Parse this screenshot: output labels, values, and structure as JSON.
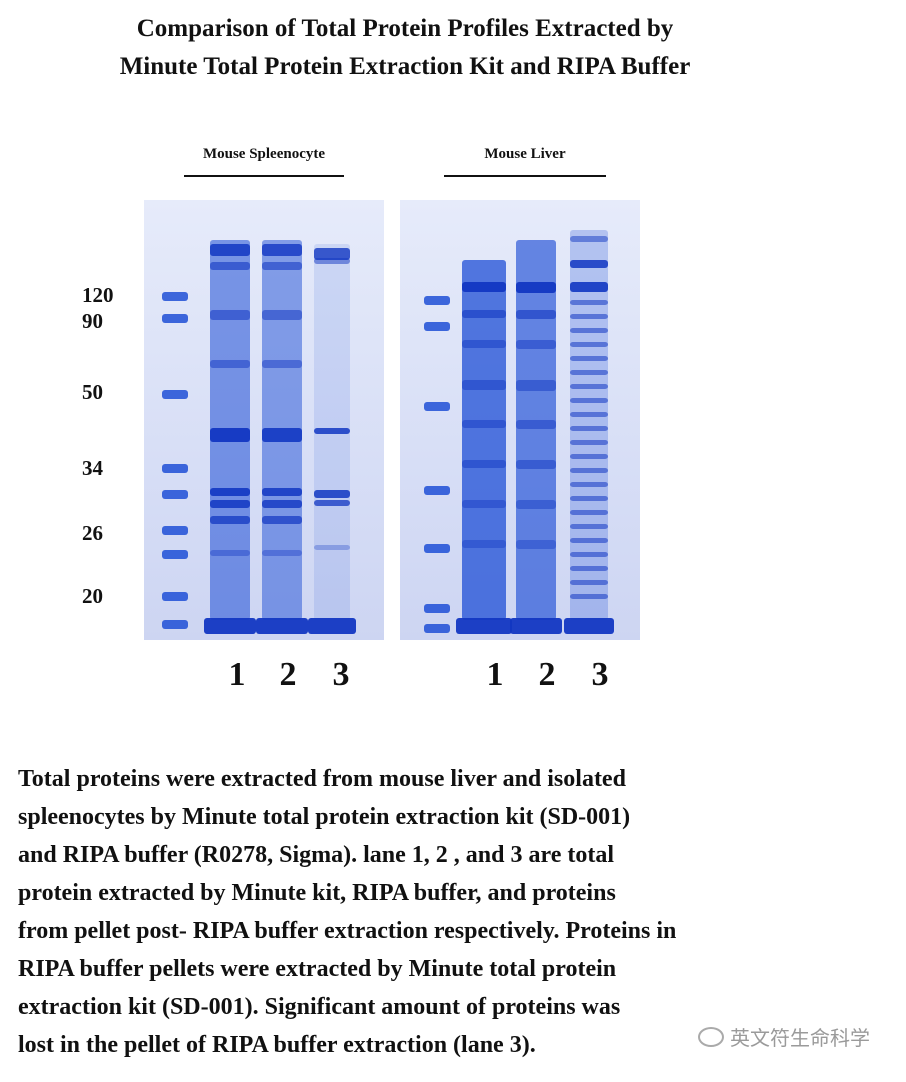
{
  "title_lines": [
    "Comparison of Total Protein Profiles Extracted by",
    "Minute Total Protein Extraction Kit and RIPA Buffer"
  ],
  "gels": [
    {
      "label": "Mouse Spleenocyte",
      "lanes": [
        "1",
        "2",
        "3"
      ]
    },
    {
      "label": "Mouse Liver",
      "lanes": [
        "1",
        "2",
        "3"
      ]
    }
  ],
  "markers": [
    "120",
    "90",
    "50",
    "34",
    "26",
    "20"
  ],
  "caption": "Total proteins were extracted from mouse liver and isolated\nspleenocytes by Minute total protein extraction kit (SD-001)\nand RIPA buffer (R0278, Sigma).  lane 1, 2 , and 3 are total\nprotein extracted by Minute kit, RIPA buffer, and proteins\nfrom pellet post- RIPA buffer extraction respectively.  Proteins in\nRIPA buffer pellets were extracted by Minute total protein\nextraction kit (SD-001).  Significant amount of proteins was\nlost in the pellet of RIPA buffer extraction (lane 3).",
  "watermark": "英文符生命科学",
  "colors": {
    "band": "#1f4fd6",
    "band_dark": "#1237c2",
    "gel_bg": "#dbe1f7"
  }
}
